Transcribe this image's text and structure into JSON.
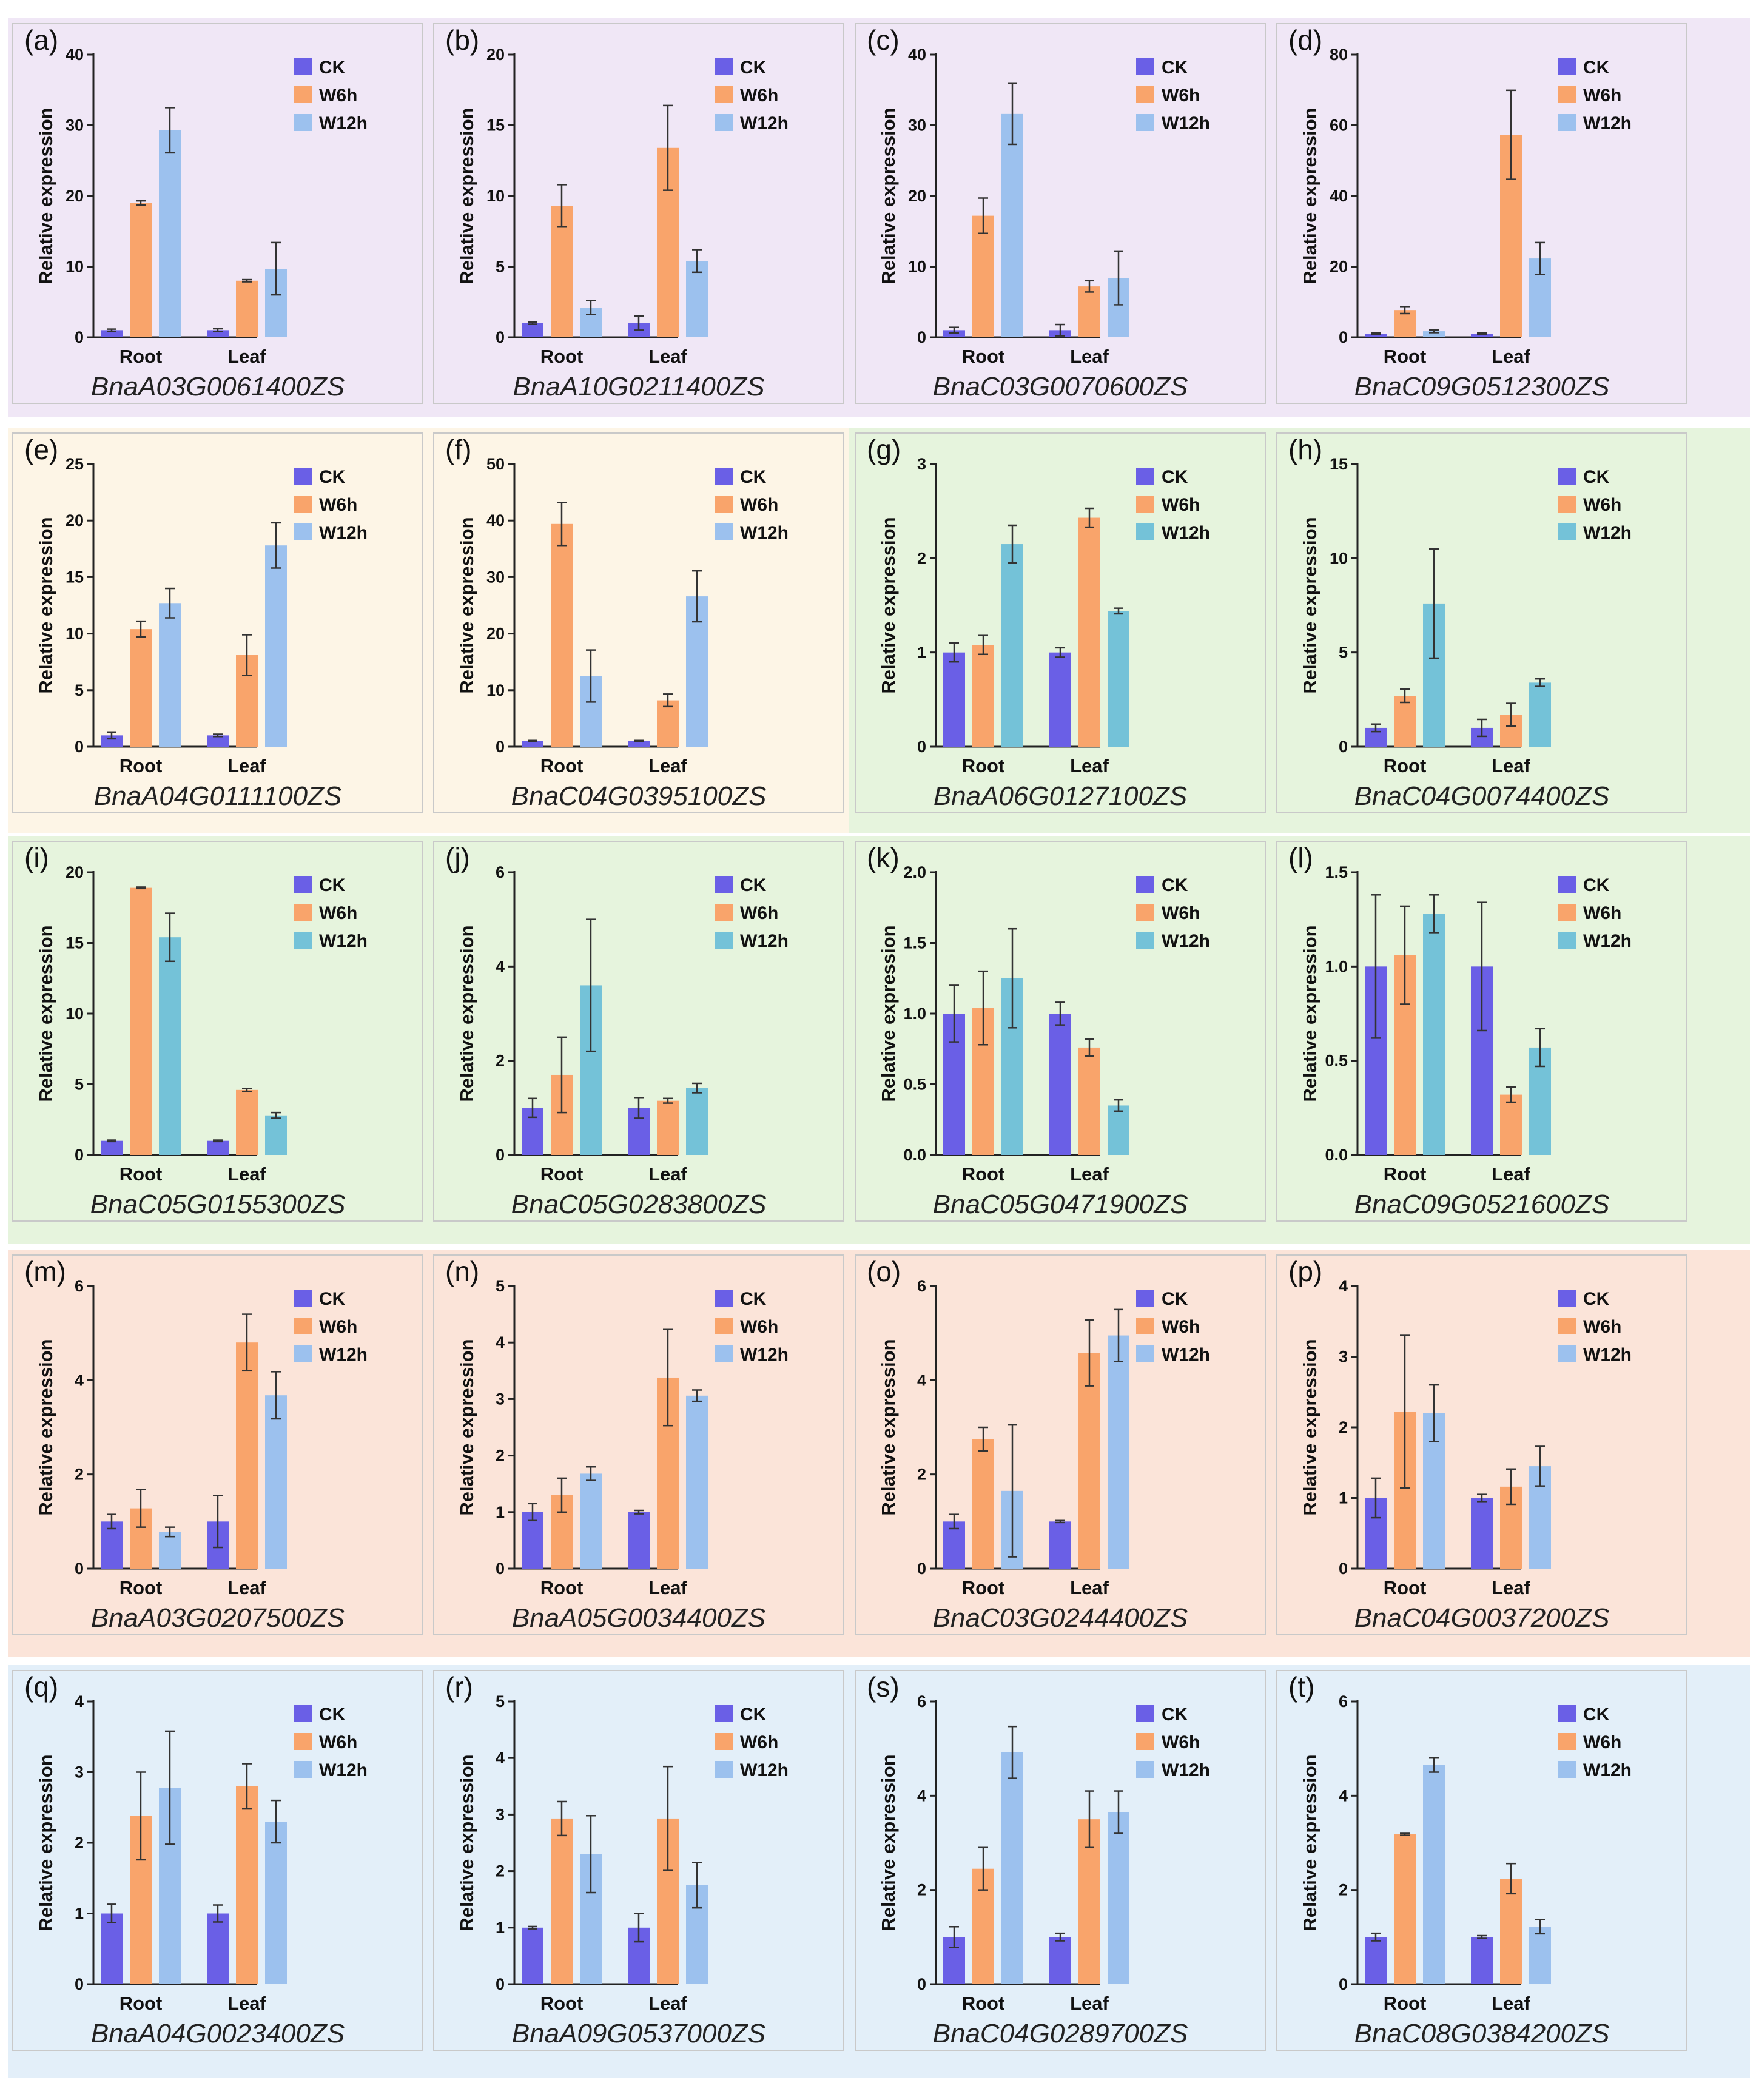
{
  "colors": {
    "ck": "#6a5fe6",
    "w6h": "#f9a46b",
    "w12h_blue": "#9cc1ee",
    "w12h_teal": "#74c2d8",
    "bg_purple": "#f0e7f6",
    "bg_cream": "#fdf5e6",
    "bg_green": "#e6f4dd",
    "bg_peach": "#fbe4d9",
    "bg_blue": "#e3eff9"
  },
  "chart_data": [
    {
      "panel": "(a)",
      "type": "bar",
      "gene": "BnaA03G0061400ZS",
      "ylabel": "Relative expression",
      "categories": [
        "Root",
        "Leaf"
      ],
      "ylim": [
        0,
        40
      ],
      "yticks": [
        "0",
        "10",
        "20",
        "30",
        "40"
      ],
      "series": [
        {
          "name": "CK",
          "values": [
            1,
            1
          ],
          "errors": [
            0.15,
            0.2
          ]
        },
        {
          "name": "W6h",
          "values": [
            19,
            8
          ],
          "errors": [
            0.3,
            0.15
          ]
        },
        {
          "name": "W12h",
          "values": [
            29.3,
            9.7
          ],
          "errors": [
            3.2,
            3.7
          ]
        }
      ]
    },
    {
      "panel": "(b)",
      "type": "bar",
      "gene": "BnaA10G0211400ZS",
      "ylabel": "Relative expression",
      "categories": [
        "Root",
        "Leaf"
      ],
      "ylim": [
        0,
        20
      ],
      "yticks": [
        "0",
        "5",
        "10",
        "15",
        "20"
      ],
      "series": [
        {
          "name": "CK",
          "values": [
            1,
            1
          ],
          "errors": [
            0.08,
            0.5
          ]
        },
        {
          "name": "W6h",
          "values": [
            9.3,
            13.4
          ],
          "errors": [
            1.5,
            3.0
          ]
        },
        {
          "name": "W12h",
          "values": [
            2.1,
            5.4
          ],
          "errors": [
            0.5,
            0.8
          ]
        }
      ]
    },
    {
      "panel": "(c)",
      "type": "bar",
      "gene": "BnaC03G0070600ZS",
      "ylabel": "Relative expression",
      "categories": [
        "Root",
        "Leaf"
      ],
      "ylim": [
        0,
        40
      ],
      "yticks": [
        "0",
        "10",
        "20",
        "30",
        "40"
      ],
      "series": [
        {
          "name": "CK",
          "values": [
            1,
            1
          ],
          "errors": [
            0.4,
            0.8
          ]
        },
        {
          "name": "W6h",
          "values": [
            17.2,
            7.2
          ],
          "errors": [
            2.5,
            0.8
          ]
        },
        {
          "name": "W12h",
          "values": [
            31.6,
            8.4
          ],
          "errors": [
            4.3,
            3.8
          ]
        }
      ]
    },
    {
      "panel": "(d)",
      "type": "bar",
      "gene": "BnaC09G0512300ZS",
      "ylabel": "Relative expression",
      "categories": [
        "Root",
        "Leaf"
      ],
      "ylim": [
        0,
        80
      ],
      "yticks": [
        "0",
        "20",
        "40",
        "60",
        "80"
      ],
      "series": [
        {
          "name": "CK",
          "values": [
            1,
            1
          ],
          "errors": [
            0.2,
            0.2
          ]
        },
        {
          "name": "W6h",
          "values": [
            7.7,
            57.3
          ],
          "errors": [
            1.0,
            12.6
          ]
        },
        {
          "name": "W12h",
          "values": [
            1.7,
            22.3
          ],
          "errors": [
            0.4,
            4.5
          ]
        }
      ]
    },
    {
      "panel": "(e)",
      "type": "bar",
      "gene": "BnaA04G0111100ZS",
      "ylabel": "Relative expression",
      "categories": [
        "Root",
        "Leaf"
      ],
      "ylim": [
        0,
        25
      ],
      "yticks": [
        "0",
        "5",
        "10",
        "15",
        "20",
        "25"
      ],
      "series": [
        {
          "name": "CK",
          "values": [
            1,
            1
          ],
          "errors": [
            0.3,
            0.1
          ]
        },
        {
          "name": "W6h",
          "values": [
            10.4,
            8.1
          ],
          "errors": [
            0.7,
            1.8
          ]
        },
        {
          "name": "W12h",
          "values": [
            12.7,
            17.8
          ],
          "errors": [
            1.3,
            2.0
          ]
        }
      ]
    },
    {
      "panel": "(f)",
      "type": "bar",
      "gene": "BnaC04G0395100ZS",
      "ylabel": "Relative expression",
      "categories": [
        "Root",
        "Leaf"
      ],
      "ylim": [
        0,
        50
      ],
      "yticks": [
        "0",
        "10",
        "20",
        "30",
        "40",
        "50"
      ],
      "series": [
        {
          "name": "CK",
          "values": [
            1,
            1
          ],
          "errors": [
            0.1,
            0.1
          ]
        },
        {
          "name": "W6h",
          "values": [
            39.4,
            8.2
          ],
          "errors": [
            3.8,
            1.1
          ]
        },
        {
          "name": "W12h",
          "values": [
            12.5,
            26.6
          ],
          "errors": [
            4.6,
            4.5
          ]
        }
      ]
    },
    {
      "panel": "(g)",
      "type": "bar",
      "gene": "BnaA06G0127100ZS",
      "ylabel": "Relative expression",
      "categories": [
        "Root",
        "Leaf"
      ],
      "ylim": [
        0,
        3
      ],
      "yticks": [
        "0",
        "1",
        "2",
        "3"
      ],
      "series": [
        {
          "name": "CK",
          "values": [
            1,
            1
          ],
          "errors": [
            0.1,
            0.05
          ]
        },
        {
          "name": "W6h",
          "values": [
            1.08,
            2.43
          ],
          "errors": [
            0.1,
            0.1
          ]
        },
        {
          "name": "W12h",
          "values": [
            2.15,
            1.44
          ],
          "errors": [
            0.2,
            0.03
          ]
        }
      ]
    },
    {
      "panel": "(h)",
      "type": "bar",
      "gene": "BnaC04G0074400ZS",
      "ylabel": "Relative expression",
      "categories": [
        "Root",
        "Leaf"
      ],
      "ylim": [
        0,
        15
      ],
      "yticks": [
        "0",
        "5",
        "10",
        "15"
      ],
      "series": [
        {
          "name": "CK",
          "values": [
            1,
            1
          ],
          "errors": [
            0.2,
            0.45
          ]
        },
        {
          "name": "W6h",
          "values": [
            2.7,
            1.7
          ],
          "errors": [
            0.35,
            0.6
          ]
        },
        {
          "name": "W12h",
          "values": [
            7.6,
            3.4
          ],
          "errors": [
            2.9,
            0.2
          ]
        }
      ]
    },
    {
      "panel": "(i)",
      "type": "bar",
      "gene": "BnaC05G0155300ZS",
      "ylabel": "Relative expression",
      "categories": [
        "Root",
        "Leaf"
      ],
      "ylim": [
        0,
        20
      ],
      "yticks": [
        "0",
        "5",
        "10",
        "15",
        "20"
      ],
      "series": [
        {
          "name": "CK",
          "values": [
            1,
            1
          ],
          "errors": [
            0.05,
            0.05
          ]
        },
        {
          "name": "W6h",
          "values": [
            18.9,
            4.6
          ],
          "errors": [
            0.05,
            0.1
          ]
        },
        {
          "name": "W12h",
          "values": [
            15.4,
            2.8
          ],
          "errors": [
            1.7,
            0.2
          ]
        }
      ]
    },
    {
      "panel": "(j)",
      "type": "bar",
      "gene": "BnaC05G0283800ZS",
      "ylabel": "Relative expression",
      "categories": [
        "Root",
        "Leaf"
      ],
      "ylim": [
        0,
        6
      ],
      "yticks": [
        "0",
        "2",
        "4",
        "6"
      ],
      "series": [
        {
          "name": "CK",
          "values": [
            1,
            1
          ],
          "errors": [
            0.2,
            0.22
          ]
        },
        {
          "name": "W6h",
          "values": [
            1.7,
            1.15
          ],
          "errors": [
            0.8,
            0.05
          ]
        },
        {
          "name": "W12h",
          "values": [
            3.6,
            1.42
          ],
          "errors": [
            1.4,
            0.1
          ]
        }
      ]
    },
    {
      "panel": "(k)",
      "type": "bar",
      "gene": "BnaC05G0471900ZS",
      "ylabel": "Relative expression",
      "categories": [
        "Root",
        "Leaf"
      ],
      "ylim": [
        0,
        2.0
      ],
      "yticks": [
        "0.0",
        "0.5",
        "1.0",
        "1.5",
        "2.0"
      ],
      "series": [
        {
          "name": "CK",
          "values": [
            1,
            1
          ],
          "errors": [
            0.2,
            0.08
          ]
        },
        {
          "name": "W6h",
          "values": [
            1.04,
            0.76
          ],
          "errors": [
            0.26,
            0.06
          ]
        },
        {
          "name": "W12h",
          "values": [
            1.25,
            0.35
          ],
          "errors": [
            0.35,
            0.04
          ]
        }
      ]
    },
    {
      "panel": "(l)",
      "type": "bar",
      "gene": "BnaC09G0521600ZS",
      "ylabel": "Relative expression",
      "categories": [
        "Root",
        "Leaf"
      ],
      "ylim": [
        0,
        1.5
      ],
      "yticks": [
        "0.0",
        "0.5",
        "1.0",
        "1.5"
      ],
      "series": [
        {
          "name": "CK",
          "values": [
            1,
            1
          ],
          "errors": [
            0.38,
            0.34
          ]
        },
        {
          "name": "W6h",
          "values": [
            1.06,
            0.32
          ],
          "errors": [
            0.26,
            0.04
          ]
        },
        {
          "name": "W12h",
          "values": [
            1.28,
            0.57
          ],
          "errors": [
            0.1,
            0.1
          ]
        }
      ]
    },
    {
      "panel": "(m)",
      "type": "bar",
      "gene": "BnaA03G0207500ZS",
      "ylabel": "Relative expression",
      "categories": [
        "Root",
        "Leaf"
      ],
      "ylim": [
        0,
        6
      ],
      "yticks": [
        "0",
        "2",
        "4",
        "6"
      ],
      "series": [
        {
          "name": "CK",
          "values": [
            1,
            1
          ],
          "errors": [
            0.15,
            0.55
          ]
        },
        {
          "name": "W6h",
          "values": [
            1.28,
            4.8
          ],
          "errors": [
            0.4,
            0.6
          ]
        },
        {
          "name": "W12h",
          "values": [
            0.78,
            3.68
          ],
          "errors": [
            0.1,
            0.5
          ]
        }
      ]
    },
    {
      "panel": "(n)",
      "type": "bar",
      "gene": "BnaA05G0034400ZS",
      "ylabel": "Relative expression",
      "categories": [
        "Root",
        "Leaf"
      ],
      "ylim": [
        0,
        5
      ],
      "yticks": [
        "0",
        "1",
        "2",
        "3",
        "4",
        "5"
      ],
      "series": [
        {
          "name": "CK",
          "values": [
            1,
            1
          ],
          "errors": [
            0.15,
            0.03
          ]
        },
        {
          "name": "W6h",
          "values": [
            1.3,
            3.38
          ],
          "errors": [
            0.3,
            0.85
          ]
        },
        {
          "name": "W12h",
          "values": [
            1.68,
            3.06
          ],
          "errors": [
            0.12,
            0.1
          ]
        }
      ]
    },
    {
      "panel": "(o)",
      "type": "bar",
      "gene": "BnaC03G0244400ZS",
      "ylabel": "Relative expression",
      "categories": [
        "Root",
        "Leaf"
      ],
      "ylim": [
        0,
        6
      ],
      "yticks": [
        "0",
        "2",
        "4",
        "6"
      ],
      "series": [
        {
          "name": "CK",
          "values": [
            1,
            1
          ],
          "errors": [
            0.15,
            0.02
          ]
        },
        {
          "name": "W6h",
          "values": [
            2.75,
            4.58
          ],
          "errors": [
            0.25,
            0.7
          ]
        },
        {
          "name": "W12h",
          "values": [
            1.65,
            4.95
          ],
          "errors": [
            1.4,
            0.55
          ]
        }
      ]
    },
    {
      "panel": "(p)",
      "type": "bar",
      "gene": "BnaC04G0037200ZS",
      "ylabel": "Relative expression",
      "categories": [
        "Root",
        "Leaf"
      ],
      "ylim": [
        0,
        4
      ],
      "yticks": [
        "0",
        "1",
        "2",
        "3",
        "4"
      ],
      "series": [
        {
          "name": "CK",
          "values": [
            1,
            1
          ],
          "errors": [
            0.28,
            0.05
          ]
        },
        {
          "name": "W6h",
          "values": [
            2.22,
            1.16
          ],
          "errors": [
            1.08,
            0.25
          ]
        },
        {
          "name": "W12h",
          "values": [
            2.2,
            1.45
          ],
          "errors": [
            0.4,
            0.28
          ]
        }
      ]
    },
    {
      "panel": "(q)",
      "type": "bar",
      "gene": "BnaA04G0023400ZS",
      "ylabel": "Relative expression",
      "categories": [
        "Root",
        "Leaf"
      ],
      "ylim": [
        0,
        4
      ],
      "yticks": [
        "0",
        "1",
        "2",
        "3",
        "4"
      ],
      "series": [
        {
          "name": "CK",
          "values": [
            1,
            1
          ],
          "errors": [
            0.13,
            0.12
          ]
        },
        {
          "name": "W6h",
          "values": [
            2.38,
            2.8
          ],
          "errors": [
            0.62,
            0.32
          ]
        },
        {
          "name": "W12h",
          "values": [
            2.78,
            2.3
          ],
          "errors": [
            0.8,
            0.3
          ]
        }
      ]
    },
    {
      "panel": "(r)",
      "type": "bar",
      "gene": "BnaA09G0537000ZS",
      "ylabel": "Relative expression",
      "categories": [
        "Root",
        "Leaf"
      ],
      "ylim": [
        0,
        5
      ],
      "yticks": [
        "0",
        "1",
        "2",
        "3",
        "4",
        "5"
      ],
      "series": [
        {
          "name": "CK",
          "values": [
            1,
            1
          ],
          "errors": [
            0.02,
            0.25
          ]
        },
        {
          "name": "W6h",
          "values": [
            2.93,
            2.93
          ],
          "errors": [
            0.3,
            0.92
          ]
        },
        {
          "name": "W12h",
          "values": [
            2.3,
            1.75
          ],
          "errors": [
            0.68,
            0.4
          ]
        }
      ]
    },
    {
      "panel": "(s)",
      "type": "bar",
      "gene": "BnaC04G0289700ZS",
      "ylabel": "Relative expression",
      "categories": [
        "Root",
        "Leaf"
      ],
      "ylim": [
        0,
        6
      ],
      "yticks": [
        "0",
        "2",
        "4",
        "6"
      ],
      "series": [
        {
          "name": "CK",
          "values": [
            1,
            1
          ],
          "errors": [
            0.22,
            0.08
          ]
        },
        {
          "name": "W6h",
          "values": [
            2.45,
            3.5
          ],
          "errors": [
            0.45,
            0.6
          ]
        },
        {
          "name": "W12h",
          "values": [
            4.92,
            3.65
          ],
          "errors": [
            0.55,
            0.45
          ]
        }
      ]
    },
    {
      "panel": "(t)",
      "type": "bar",
      "gene": "BnaC08G0384200ZS",
      "ylabel": "Relative expression",
      "categories": [
        "Root",
        "Leaf"
      ],
      "ylim": [
        0,
        6
      ],
      "yticks": [
        "0",
        "2",
        "4",
        "6"
      ],
      "series": [
        {
          "name": "CK",
          "values": [
            1,
            1
          ],
          "errors": [
            0.08,
            0.03
          ]
        },
        {
          "name": "W6h",
          "values": [
            3.18,
            2.24
          ],
          "errors": [
            0.02,
            0.32
          ]
        },
        {
          "name": "W12h",
          "values": [
            4.65,
            1.22
          ],
          "errors": [
            0.15,
            0.15
          ]
        }
      ]
    }
  ]
}
